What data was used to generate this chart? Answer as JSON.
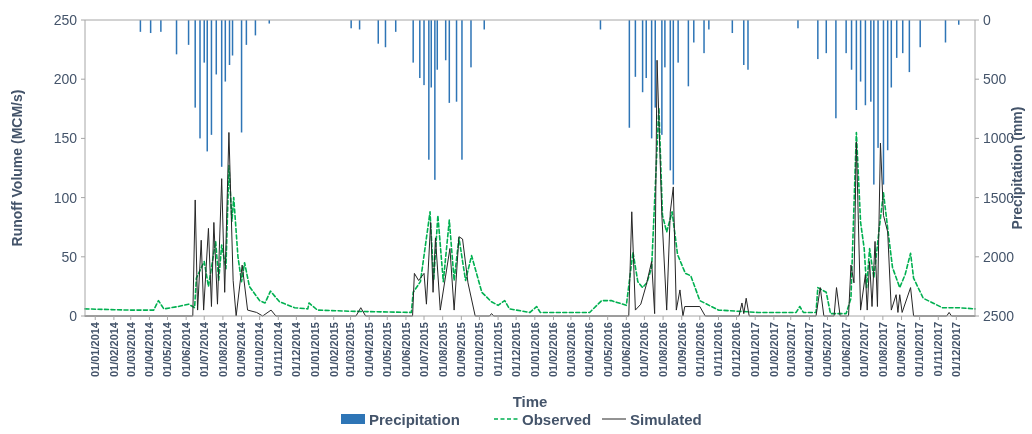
{
  "chart_data": {
    "type": "line",
    "xlabel": "Time",
    "ylabel": "Runoff Volume (MCM/s)",
    "y2label": "Precipitation (mm)",
    "legend": "bottom",
    "grid": false,
    "xlim": [
      "2013-12-15",
      "2018-01-01"
    ],
    "xticks": [
      {
        "value": "2014-01-01",
        "label": "01/01/2014"
      },
      {
        "value": "2014-02-01",
        "label": "01/02/2014"
      },
      {
        "value": "2014-03-01",
        "label": "01/03/2014"
      },
      {
        "value": "2014-04-01",
        "label": "01/04/2014"
      },
      {
        "value": "2014-05-01",
        "label": "01/05/2014"
      },
      {
        "value": "2014-06-01",
        "label": "01/06/2014"
      },
      {
        "value": "2014-07-01",
        "label": "01/07/2014"
      },
      {
        "value": "2014-08-01",
        "label": "01/08/2014"
      },
      {
        "value": "2014-09-01",
        "label": "01/09/2014"
      },
      {
        "value": "2014-10-01",
        "label": "01/10/2014"
      },
      {
        "value": "2014-11-01",
        "label": "01/11/2014"
      },
      {
        "value": "2014-12-01",
        "label": "01/12/2014"
      },
      {
        "value": "2015-01-01",
        "label": "01/01/2015"
      },
      {
        "value": "2015-02-01",
        "label": "01/02/2015"
      },
      {
        "value": "2015-03-01",
        "label": "01/03/2015"
      },
      {
        "value": "2015-04-01",
        "label": "01/04/2015"
      },
      {
        "value": "2015-05-01",
        "label": "01/05/2015"
      },
      {
        "value": "2015-06-01",
        "label": "01/06/2015"
      },
      {
        "value": "2015-07-01",
        "label": "01/07/2015"
      },
      {
        "value": "2015-08-01",
        "label": "01/08/2015"
      },
      {
        "value": "2015-09-01",
        "label": "01/09/2015"
      },
      {
        "value": "2015-10-01",
        "label": "01/10/2015"
      },
      {
        "value": "2015-11-01",
        "label": "01/11/2015"
      },
      {
        "value": "2015-12-01",
        "label": "01/12/2015"
      },
      {
        "value": "2016-01-01",
        "label": "01/01/2016"
      },
      {
        "value": "2016-02-01",
        "label": "01/02/2016"
      },
      {
        "value": "2016-03-01",
        "label": "01/03/2016"
      },
      {
        "value": "2016-04-01",
        "label": "01/04/2016"
      },
      {
        "value": "2016-05-01",
        "label": "01/05/2016"
      },
      {
        "value": "2016-06-01",
        "label": "01/06/2016"
      },
      {
        "value": "2016-07-01",
        "label": "01/07/2016"
      },
      {
        "value": "2016-08-01",
        "label": "01/08/2016"
      },
      {
        "value": "2016-09-01",
        "label": "01/09/2016"
      },
      {
        "value": "2016-10-01",
        "label": "01/10/2016"
      },
      {
        "value": "2016-11-01",
        "label": "01/11/2016"
      },
      {
        "value": "2016-12-01",
        "label": "01/12/2016"
      },
      {
        "value": "2017-01-01",
        "label": "01/01/2017"
      },
      {
        "value": "2017-02-01",
        "label": "01/02/2017"
      },
      {
        "value": "2017-03-01",
        "label": "01/03/2017"
      },
      {
        "value": "2017-04-01",
        "label": "01/04/2017"
      },
      {
        "value": "2017-05-01",
        "label": "01/05/2017"
      },
      {
        "value": "2017-06-01",
        "label": "01/06/2017"
      },
      {
        "value": "2017-07-01",
        "label": "01/07/2017"
      },
      {
        "value": "2017-08-01",
        "label": "01/08/2017"
      },
      {
        "value": "2017-09-01",
        "label": "01/09/2017"
      },
      {
        "value": "2017-10-01",
        "label": "01/10/2017"
      },
      {
        "value": "2017-11-01",
        "label": "01/11/2017"
      },
      {
        "value": "2017-12-01",
        "label": "01/12/2017"
      }
    ],
    "ylim": [
      0,
      250
    ],
    "yticks": [
      0,
      50,
      100,
      150,
      200,
      250
    ],
    "y2lim": [
      2500,
      0
    ],
    "y2ticks": [
      0,
      500,
      1000,
      1500,
      2000,
      2500
    ],
    "series": [
      {
        "name": "Precipitation",
        "type": "bar",
        "axis": "y2",
        "color": "#2e75b6",
        "x": [
          "2014-03-17",
          "2014-04-03",
          "2014-04-20",
          "2014-05-16",
          "2014-06-05",
          "2014-06-16",
          "2014-06-24",
          "2014-07-01",
          "2014-07-06",
          "2014-07-13",
          "2014-07-21",
          "2014-07-30",
          "2014-08-05",
          "2014-08-12",
          "2014-08-17",
          "2014-09-01",
          "2014-09-09",
          "2014-09-24",
          "2014-10-17",
          "2015-03-02",
          "2015-03-16",
          "2015-04-16",
          "2015-04-28",
          "2015-05-15",
          "2015-06-13",
          "2015-06-24",
          "2015-07-01",
          "2015-07-09",
          "2015-07-13",
          "2015-07-19",
          "2015-07-23",
          "2015-08-06",
          "2015-08-12",
          "2015-08-24",
          "2015-09-02",
          "2015-09-17",
          "2015-10-09",
          "2016-04-19",
          "2016-06-06",
          "2016-06-16",
          "2016-06-28",
          "2016-07-04",
          "2016-07-13",
          "2016-07-19",
          "2016-07-30",
          "2016-08-04",
          "2016-08-13",
          "2016-08-18",
          "2016-08-26",
          "2016-09-12",
          "2016-09-21",
          "2016-10-08",
          "2016-10-16",
          "2016-11-24",
          "2016-12-13",
          "2016-12-20",
          "2017-03-13",
          "2017-04-15",
          "2017-04-29",
          "2017-05-15",
          "2017-06-01",
          "2017-06-10",
          "2017-06-18",
          "2017-06-25",
          "2017-07-03",
          "2017-07-12",
          "2017-07-17",
          "2017-07-24",
          "2017-08-02",
          "2017-08-09",
          "2017-08-15",
          "2017-08-24",
          "2017-09-03",
          "2017-09-14",
          "2017-10-02",
          "2017-11-13",
          "2017-12-05"
        ],
        "values": [
          100,
          110,
          100,
          290,
          210,
          740,
          1000,
          360,
          1110,
          970,
          460,
          1240,
          520,
          380,
          300,
          950,
          210,
          130,
          30,
          70,
          80,
          200,
          230,
          100,
          360,
          490,
          550,
          1180,
          570,
          1350,
          420,
          340,
          700,
          690,
          1180,
          400,
          80,
          80,
          910,
          480,
          610,
          490,
          1000,
          740,
          970,
          400,
          1270,
          1390,
          360,
          560,
          190,
          280,
          80,
          110,
          380,
          420,
          70,
          330,
          280,
          830,
          280,
          420,
          760,
          520,
          720,
          690,
          1390,
          1080,
          1390,
          1100,
          570,
          320,
          280,
          440,
          230,
          190,
          40
        ]
      },
      {
        "name": "Observed",
        "line_style": "dashed",
        "color": "#00b050",
        "x": [
          "2013-12-15",
          "2014-02-27",
          "2014-04-08",
          "2014-04-16",
          "2014-04-25",
          "2014-05-19",
          "2014-06-05",
          "2014-06-15",
          "2014-06-18",
          "2014-07-01",
          "2014-07-08",
          "2014-07-20",
          "2014-07-25",
          "2014-07-30",
          "2014-08-06",
          "2014-08-11",
          "2014-08-16",
          "2014-08-19",
          "2014-08-26",
          "2014-09-01",
          "2014-09-06",
          "2014-09-14",
          "2014-10-01",
          "2014-10-10",
          "2014-10-19",
          "2014-11-03",
          "2014-11-28",
          "2014-12-20",
          "2014-12-22",
          "2015-01-05",
          "2015-03-01",
          "2015-06-10",
          "2015-06-13",
          "2015-06-25",
          "2015-07-11",
          "2015-07-17",
          "2015-07-24",
          "2015-08-02",
          "2015-08-12",
          "2015-08-20",
          "2015-08-28",
          "2015-09-08",
          "2015-09-18",
          "2015-10-05",
          "2015-10-21",
          "2015-11-01",
          "2015-11-12",
          "2015-11-20",
          "2015-12-24",
          "2016-01-04",
          "2016-01-10",
          "2016-04-01",
          "2016-04-21",
          "2016-05-07",
          "2016-06-01",
          "2016-06-12",
          "2016-06-20",
          "2016-06-28",
          "2016-07-05",
          "2016-07-13",
          "2016-07-25",
          "2016-07-31",
          "2016-08-07",
          "2016-08-16",
          "2016-08-25",
          "2016-09-07",
          "2016-09-16",
          "2016-10-01",
          "2016-11-01",
          "2017-01-06",
          "2017-03-10",
          "2017-03-16",
          "2017-03-22",
          "2017-04-12",
          "2017-04-15",
          "2017-04-29",
          "2017-05-06",
          "2017-06-01",
          "2017-06-09",
          "2017-06-18",
          "2017-06-25",
          "2017-07-01",
          "2017-07-05",
          "2017-07-10",
          "2017-07-17",
          "2017-07-26",
          "2017-08-02",
          "2017-08-09",
          "2017-08-17",
          "2017-08-29",
          "2017-09-07",
          "2017-09-16",
          "2017-09-21",
          "2017-10-07",
          "2017-11-08",
          "2017-12-05",
          "2018-01-01"
        ],
        "values": [
          6,
          5,
          5,
          13,
          6,
          8,
          10,
          7,
          32,
          46,
          25,
          63,
          30,
          60,
          40,
          127,
          80,
          100,
          50,
          29,
          45,
          25,
          13,
          11,
          21,
          12,
          7,
          6,
          11,
          5,
          4,
          3,
          20,
          29,
          88,
          30,
          85,
          29,
          81,
          30,
          66,
          30,
          51,
          20,
          12,
          9,
          13,
          6,
          3,
          8,
          3,
          3,
          13,
          13,
          9,
          54,
          29,
          24,
          28,
          41,
          176,
          85,
          71,
          88,
          52,
          36,
          34,
          13,
          5,
          3,
          3,
          8,
          3,
          3,
          24,
          20,
          2,
          2,
          15,
          155,
          79,
          57,
          24,
          57,
          32,
          74,
          104,
          74,
          41,
          24,
          35,
          53,
          32,
          15,
          7,
          7,
          6
        ]
      },
      {
        "name": "Simulated",
        "line_style": "solid",
        "color": "#262626",
        "x": [
          "2013-12-15",
          "2014-06-12",
          "2014-06-16",
          "2014-06-20",
          "2014-06-26",
          "2014-06-30",
          "2014-07-08",
          "2014-07-13",
          "2014-07-17",
          "2014-07-23",
          "2014-07-30",
          "2014-08-04",
          "2014-08-11",
          "2014-08-18",
          "2014-08-23",
          "2014-09-02",
          "2014-09-11",
          "2014-09-26",
          "2014-10-06",
          "2014-10-20",
          "2014-10-28",
          "2015-03-10",
          "2015-03-18",
          "2015-03-26",
          "2015-06-12",
          "2015-06-15",
          "2015-06-22",
          "2015-07-01",
          "2015-07-05",
          "2015-07-12",
          "2015-07-16",
          "2015-07-20",
          "2015-07-28",
          "2015-08-13",
          "2015-08-20",
          "2015-08-28",
          "2015-09-03",
          "2015-09-12",
          "2015-09-24",
          "2015-10-18",
          "2015-10-21",
          "2015-10-25",
          "2016-06-05",
          "2016-06-10",
          "2016-06-16",
          "2016-06-25",
          "2016-07-04",
          "2016-07-13",
          "2016-07-18",
          "2016-07-22",
          "2016-07-30",
          "2016-08-07",
          "2016-08-13",
          "2016-08-18",
          "2016-08-23",
          "2016-08-29",
          "2016-09-03",
          "2016-09-06",
          "2016-10-01",
          "2016-10-10",
          "2016-12-05",
          "2016-12-10",
          "2016-12-13",
          "2016-12-17",
          "2016-12-22",
          "2017-04-12",
          "2017-04-19",
          "2017-04-25",
          "2017-05-12",
          "2017-05-16",
          "2017-05-22",
          "2017-06-05",
          "2017-06-09",
          "2017-06-14",
          "2017-06-18",
          "2017-06-25",
          "2017-07-03",
          "2017-07-06",
          "2017-07-10",
          "2017-07-14",
          "2017-07-19",
          "2017-07-23",
          "2017-07-28",
          "2017-08-02",
          "2017-08-09",
          "2017-08-15",
          "2017-08-23",
          "2017-08-26",
          "2017-08-29",
          "2017-09-02",
          "2017-09-16",
          "2017-09-21",
          "2017-11-15",
          "2017-11-19",
          "2017-11-23",
          "2018-01-01"
        ],
        "values": [
          0,
          0,
          98,
          5,
          64,
          5,
          74,
          8,
          79,
          10,
          116,
          20,
          155,
          30,
          0,
          43,
          5,
          3,
          0,
          5,
          0,
          0,
          7,
          0,
          0,
          36,
          30,
          36,
          10,
          79,
          20,
          66,
          5,
          57,
          5,
          67,
          65,
          28,
          0,
          0,
          2,
          0,
          0,
          88,
          5,
          10,
          26,
          46,
          2,
          216,
          85,
          5,
          88,
          109,
          5,
          22,
          0,
          8,
          8,
          0,
          0,
          11,
          2,
          15,
          0,
          0,
          24,
          0,
          0,
          24,
          0,
          0,
          43,
          28,
          147,
          5,
          35,
          5,
          46,
          8,
          63,
          8,
          146,
          85,
          71,
          5,
          18,
          3,
          18,
          3,
          24,
          0,
          0,
          3,
          0,
          0
        ]
      }
    ]
  }
}
